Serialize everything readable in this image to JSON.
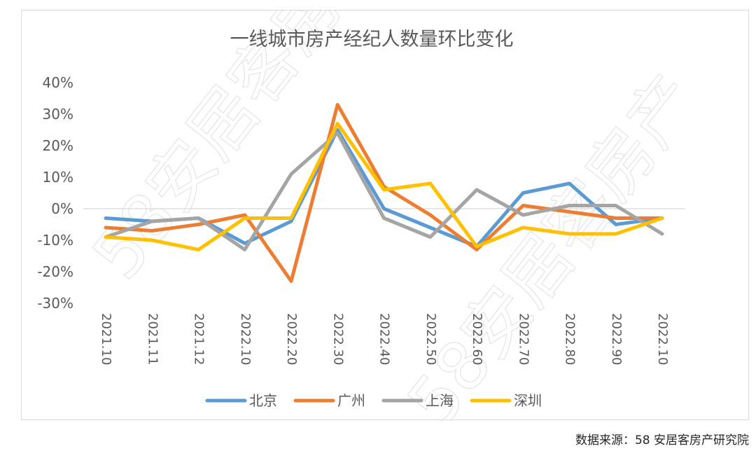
{
  "source_note": "数据来源：58 安居客房产研究院",
  "watermark": "58安居客房产",
  "chart_data": {
    "type": "line",
    "title": "一线城市房产经纪人数量环比变化",
    "categories": [
      "2021.10",
      "2021.11",
      "2021.12",
      "2022.10",
      "2022.20",
      "2022.30",
      "2022.40",
      "2022.50",
      "2022.60",
      "2022.70",
      "2022.80",
      "2022.90",
      "2022.10"
    ],
    "ylim": [
      -30,
      40
    ],
    "yticks": [
      -30,
      -20,
      -10,
      0,
      10,
      20,
      30,
      40
    ],
    "ytick_labels": [
      "-30%",
      "-20%",
      "-10%",
      "0%",
      "10%",
      "20%",
      "30%",
      "40%"
    ],
    "grid": false,
    "legend_position": "bottom",
    "series": [
      {
        "name": "北京",
        "color": "#5b9bd5",
        "values": [
          -3,
          -4,
          -3,
          -11,
          -4,
          25,
          0,
          -6,
          -12,
          5,
          8,
          -5,
          -3
        ]
      },
      {
        "name": "广州",
        "color": "#ed7d31",
        "values": [
          -6,
          -7,
          -5,
          -2,
          -23,
          33,
          7,
          -2,
          -13,
          1,
          -1,
          -3,
          -3
        ]
      },
      {
        "name": "上海",
        "color": "#a5a5a5",
        "values": [
          -9,
          -4,
          -3,
          -13,
          11,
          24,
          -3,
          -9,
          6,
          -2,
          1,
          1,
          -8
        ]
      },
      {
        "name": "深圳",
        "color": "#ffc000",
        "values": [
          -9,
          -10,
          -13,
          -3,
          -3,
          27,
          6,
          8,
          -12,
          -6,
          -8,
          -8,
          -3
        ]
      }
    ]
  }
}
